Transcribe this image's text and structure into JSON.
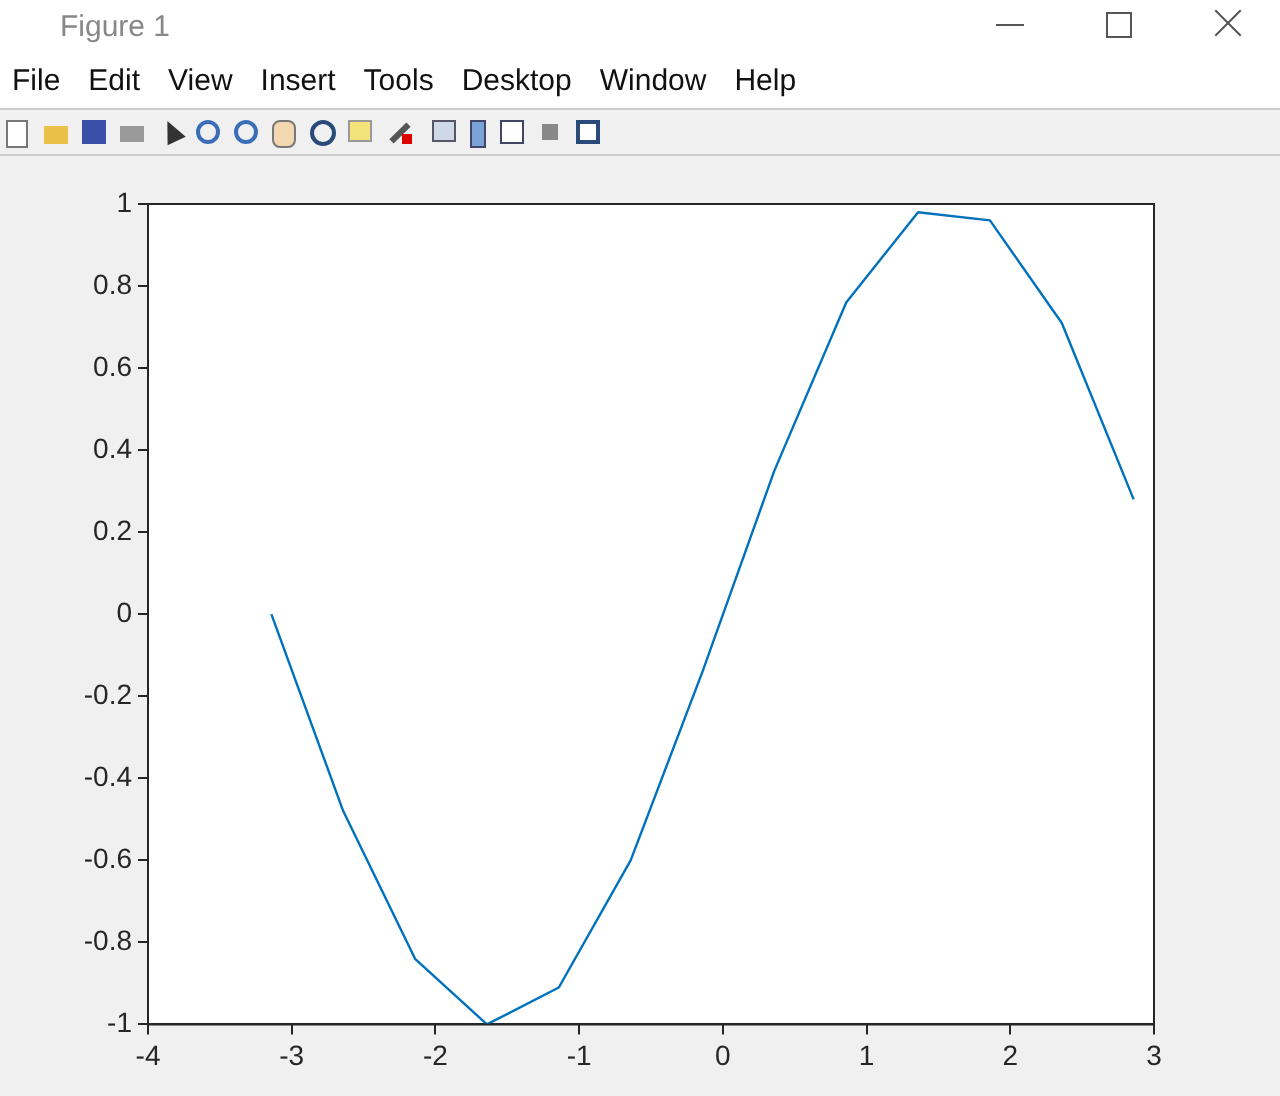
{
  "chart_data": {
    "type": "line",
    "title": "Figure 1",
    "annotations": [
      "File",
      "Edit",
      "View",
      "Insert",
      "Tools",
      "Desktop",
      "Window",
      "Help"
    ],
    "x": [
      -3.1416,
      -2.6416,
      -2.1416,
      -1.6416,
      -1.1416,
      -0.6416,
      -0.1416,
      0.3584,
      0.8584,
      1.3584,
      1.8584,
      2.3584,
      2.8584
    ],
    "series": [
      {
        "color": "#0072bd",
        "values": [
          0,
          -0.48,
          -0.84,
          -1.0,
          -0.91,
          -0.6,
          -0.14,
          0.35,
          0.76,
          0.98,
          0.96,
          0.71,
          0.28
        ]
      }
    ],
    "xlim": [
      -4,
      3
    ],
    "xticks": [
      -4,
      -3,
      -2,
      -1,
      0,
      1,
      2,
      3
    ],
    "ylim": [
      -1,
      1
    ],
    "yticks": [
      -1,
      -0.8,
      -0.6,
      -0.4,
      -0.2,
      0,
      0.2,
      0.4,
      0.6,
      0.8,
      1
    ],
    "grid": false,
    "legend": false,
    "marker": "none",
    "line_style": "solid"
  }
}
